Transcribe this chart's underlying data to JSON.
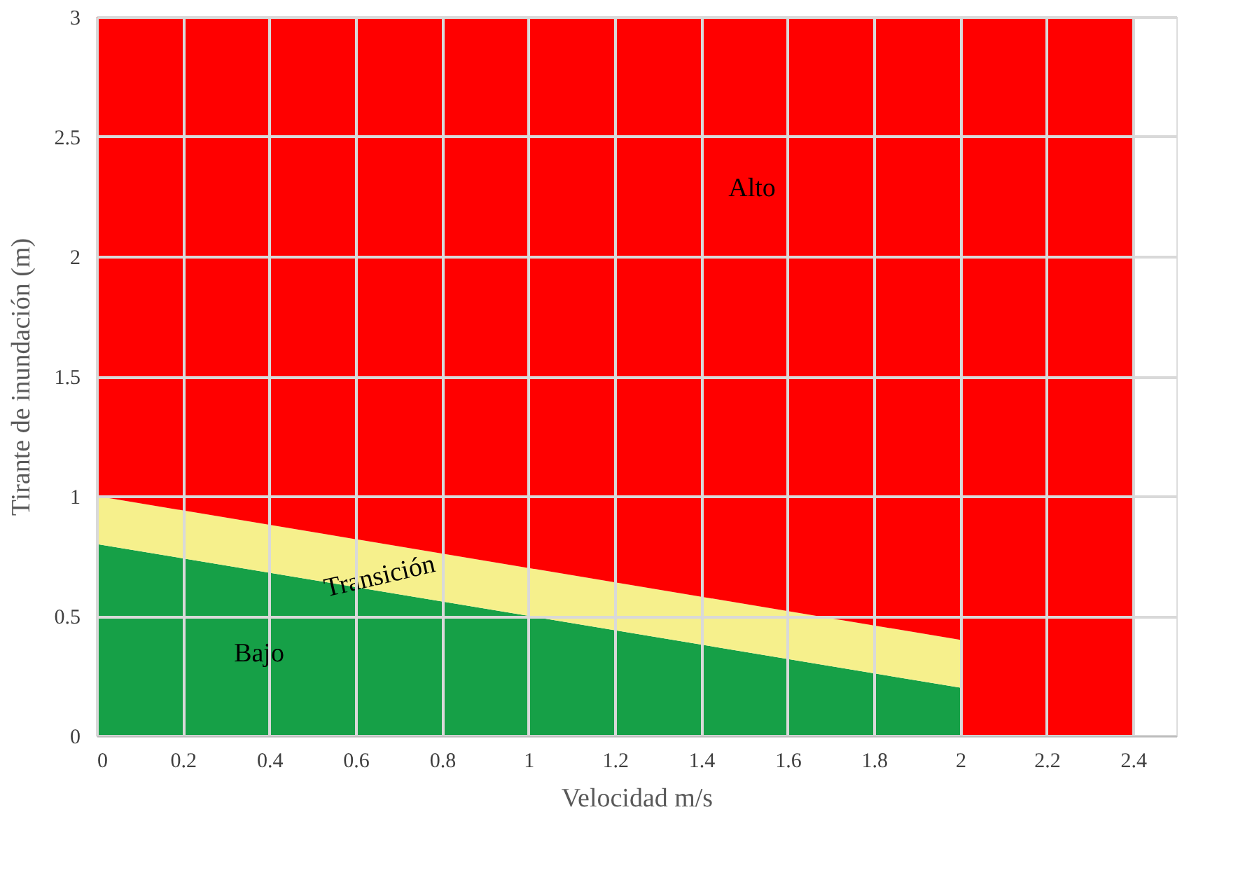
{
  "chart_data": {
    "type": "area",
    "stacked": true,
    "xlabel": "Velocidad m/s",
    "ylabel": "Tirante de inundación (m)",
    "x": [
      0,
      2,
      2,
      2.4
    ],
    "series": [
      {
        "color": "#16a047",
        "values": [
          0.8,
          0.2,
          0,
          0
        ]
      },
      {
        "color": "#f6f08c",
        "values": [
          0.2,
          0.2,
          0,
          0
        ]
      },
      {
        "color": "#ff0000",
        "values": [
          2.0,
          2.6,
          3,
          3
        ]
      }
    ],
    "xlim": [
      0,
      2.5
    ],
    "xticks": [
      0,
      0.2,
      0.4,
      0.6,
      0.8,
      1,
      1.2,
      1.4,
      1.6,
      1.8,
      2,
      2.2,
      2.4
    ],
    "ylim": [
      0,
      3
    ],
    "yticks": [
      0,
      0.5,
      1,
      1.5,
      2,
      2.5,
      3
    ],
    "grid": true,
    "legend": false,
    "annotations": [
      "Alto",
      "Transición",
      "Bajo"
    ]
  }
}
